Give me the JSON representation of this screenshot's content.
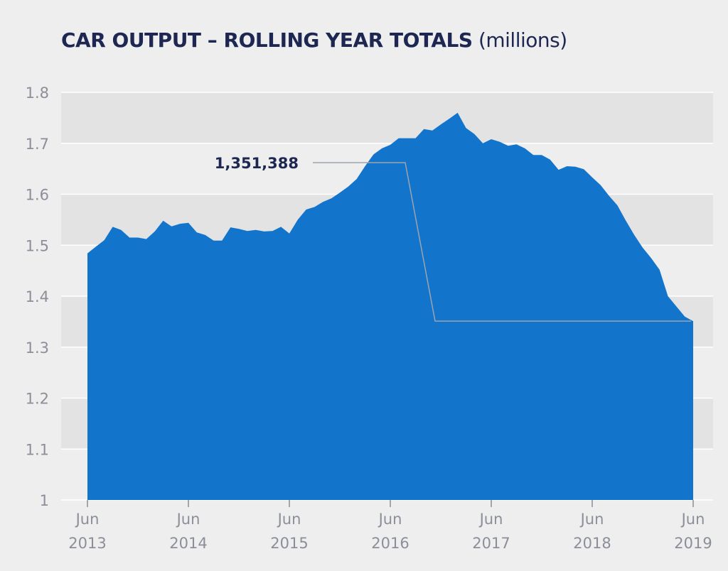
{
  "chart_data": {
    "type": "area",
    "title": "CAR OUTPUT – ROLLING YEAR TOTALS",
    "unit": "(millions)",
    "xlabel": "",
    "ylabel": "",
    "ylim": [
      1.0,
      1.8
    ],
    "yticks": [
      "1.8",
      "1.7",
      "1.6",
      "1.5",
      "1.4",
      "1.3",
      "1.2",
      "1.1",
      "1"
    ],
    "ytick_values": [
      1.8,
      1.7,
      1.6,
      1.5,
      1.4,
      1.3,
      1.2,
      1.1,
      1.0
    ],
    "xticks": [
      {
        "month": "Jun",
        "year": "2013"
      },
      {
        "month": "Jun",
        "year": "2014"
      },
      {
        "month": "Jun",
        "year": "2015"
      },
      {
        "month": "Jun",
        "year": "2016"
      },
      {
        "month": "Jun",
        "year": "2017"
      },
      {
        "month": "Jun",
        "year": "2018"
      },
      {
        "month": "Jun",
        "year": "2019"
      }
    ],
    "grid": "horizontal bands",
    "series": [
      {
        "color": "#1274cb",
        "x": [
          "2013-06",
          "2013-07",
          "2013-08",
          "2013-09",
          "2013-10",
          "2013-11",
          "2013-12",
          "2014-01",
          "2014-02",
          "2014-03",
          "2014-04",
          "2014-05",
          "2014-06",
          "2014-07",
          "2014-08",
          "2014-09",
          "2014-10",
          "2014-11",
          "2014-12",
          "2015-01",
          "2015-02",
          "2015-03",
          "2015-04",
          "2015-05",
          "2015-06",
          "2015-07",
          "2015-08",
          "2015-09",
          "2015-10",
          "2015-11",
          "2015-12",
          "2016-01",
          "2016-02",
          "2016-03",
          "2016-04",
          "2016-05",
          "2016-06",
          "2016-07",
          "2016-08",
          "2016-09",
          "2016-10",
          "2016-11",
          "2016-12",
          "2017-01",
          "2017-02",
          "2017-03",
          "2017-04",
          "2017-05",
          "2017-06",
          "2017-07",
          "2017-08",
          "2017-09",
          "2017-10",
          "2017-11",
          "2017-12",
          "2018-01",
          "2018-02",
          "2018-03",
          "2018-04",
          "2018-05",
          "2018-06",
          "2018-07",
          "2018-08",
          "2018-09",
          "2018-10",
          "2018-11",
          "2018-12",
          "2019-01",
          "2019-02",
          "2019-03",
          "2019-04",
          "2019-05",
          "2019-06"
        ],
        "values": [
          1.484,
          1.497,
          1.51,
          1.536,
          1.53,
          1.515,
          1.515,
          1.512,
          1.527,
          1.548,
          1.537,
          1.542,
          1.544,
          1.525,
          1.52,
          1.509,
          1.509,
          1.535,
          1.532,
          1.528,
          1.53,
          1.527,
          1.528,
          1.536,
          1.523,
          1.55,
          1.57,
          1.575,
          1.585,
          1.592,
          1.603,
          1.615,
          1.63,
          1.655,
          1.678,
          1.69,
          1.697,
          1.71,
          1.71,
          1.71,
          1.728,
          1.725,
          1.737,
          1.748,
          1.76,
          1.73,
          1.718,
          1.7,
          1.708,
          1.703,
          1.695,
          1.698,
          1.69,
          1.677,
          1.677,
          1.668,
          1.648,
          1.655,
          1.654,
          1.649,
          1.633,
          1.618,
          1.597,
          1.578,
          1.548,
          1.52,
          1.495,
          1.475,
          1.452,
          1.4,
          1.38,
          1.36,
          1.351
        ]
      }
    ],
    "annotations": [
      {
        "text": "1,351,388",
        "value": 1351388,
        "points_to": "2019-06"
      }
    ]
  }
}
